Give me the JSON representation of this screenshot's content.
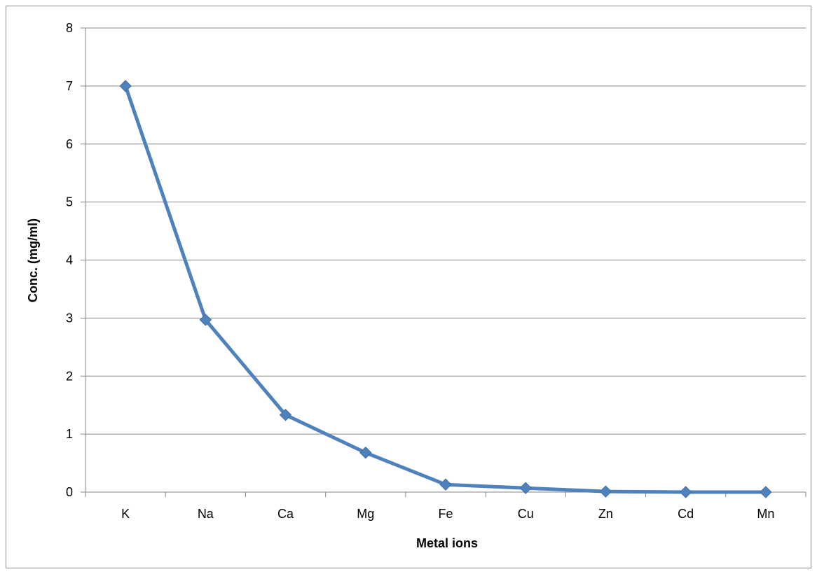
{
  "chart_data": {
    "type": "line",
    "title": "",
    "xlabel": "Metal ions",
    "ylabel": "Conc. (mg/ml)",
    "categories": [
      "K",
      "Na",
      "Ca",
      "Mg",
      "Fe",
      "Cu",
      "Zn",
      "Cd",
      "Mn"
    ],
    "series": [
      {
        "values": [
          7.0,
          2.97,
          1.33,
          0.68,
          0.13,
          0.07,
          0.01,
          0.0,
          0.0
        ]
      }
    ],
    "ylim": [
      0,
      8
    ],
    "yticks": [
      0,
      1,
      2,
      3,
      4,
      5,
      6,
      7,
      8
    ],
    "grid": true,
    "legend": "none",
    "colors": {
      "line": "#4f81bd",
      "grid": "#868686",
      "axis": "#868686"
    }
  }
}
